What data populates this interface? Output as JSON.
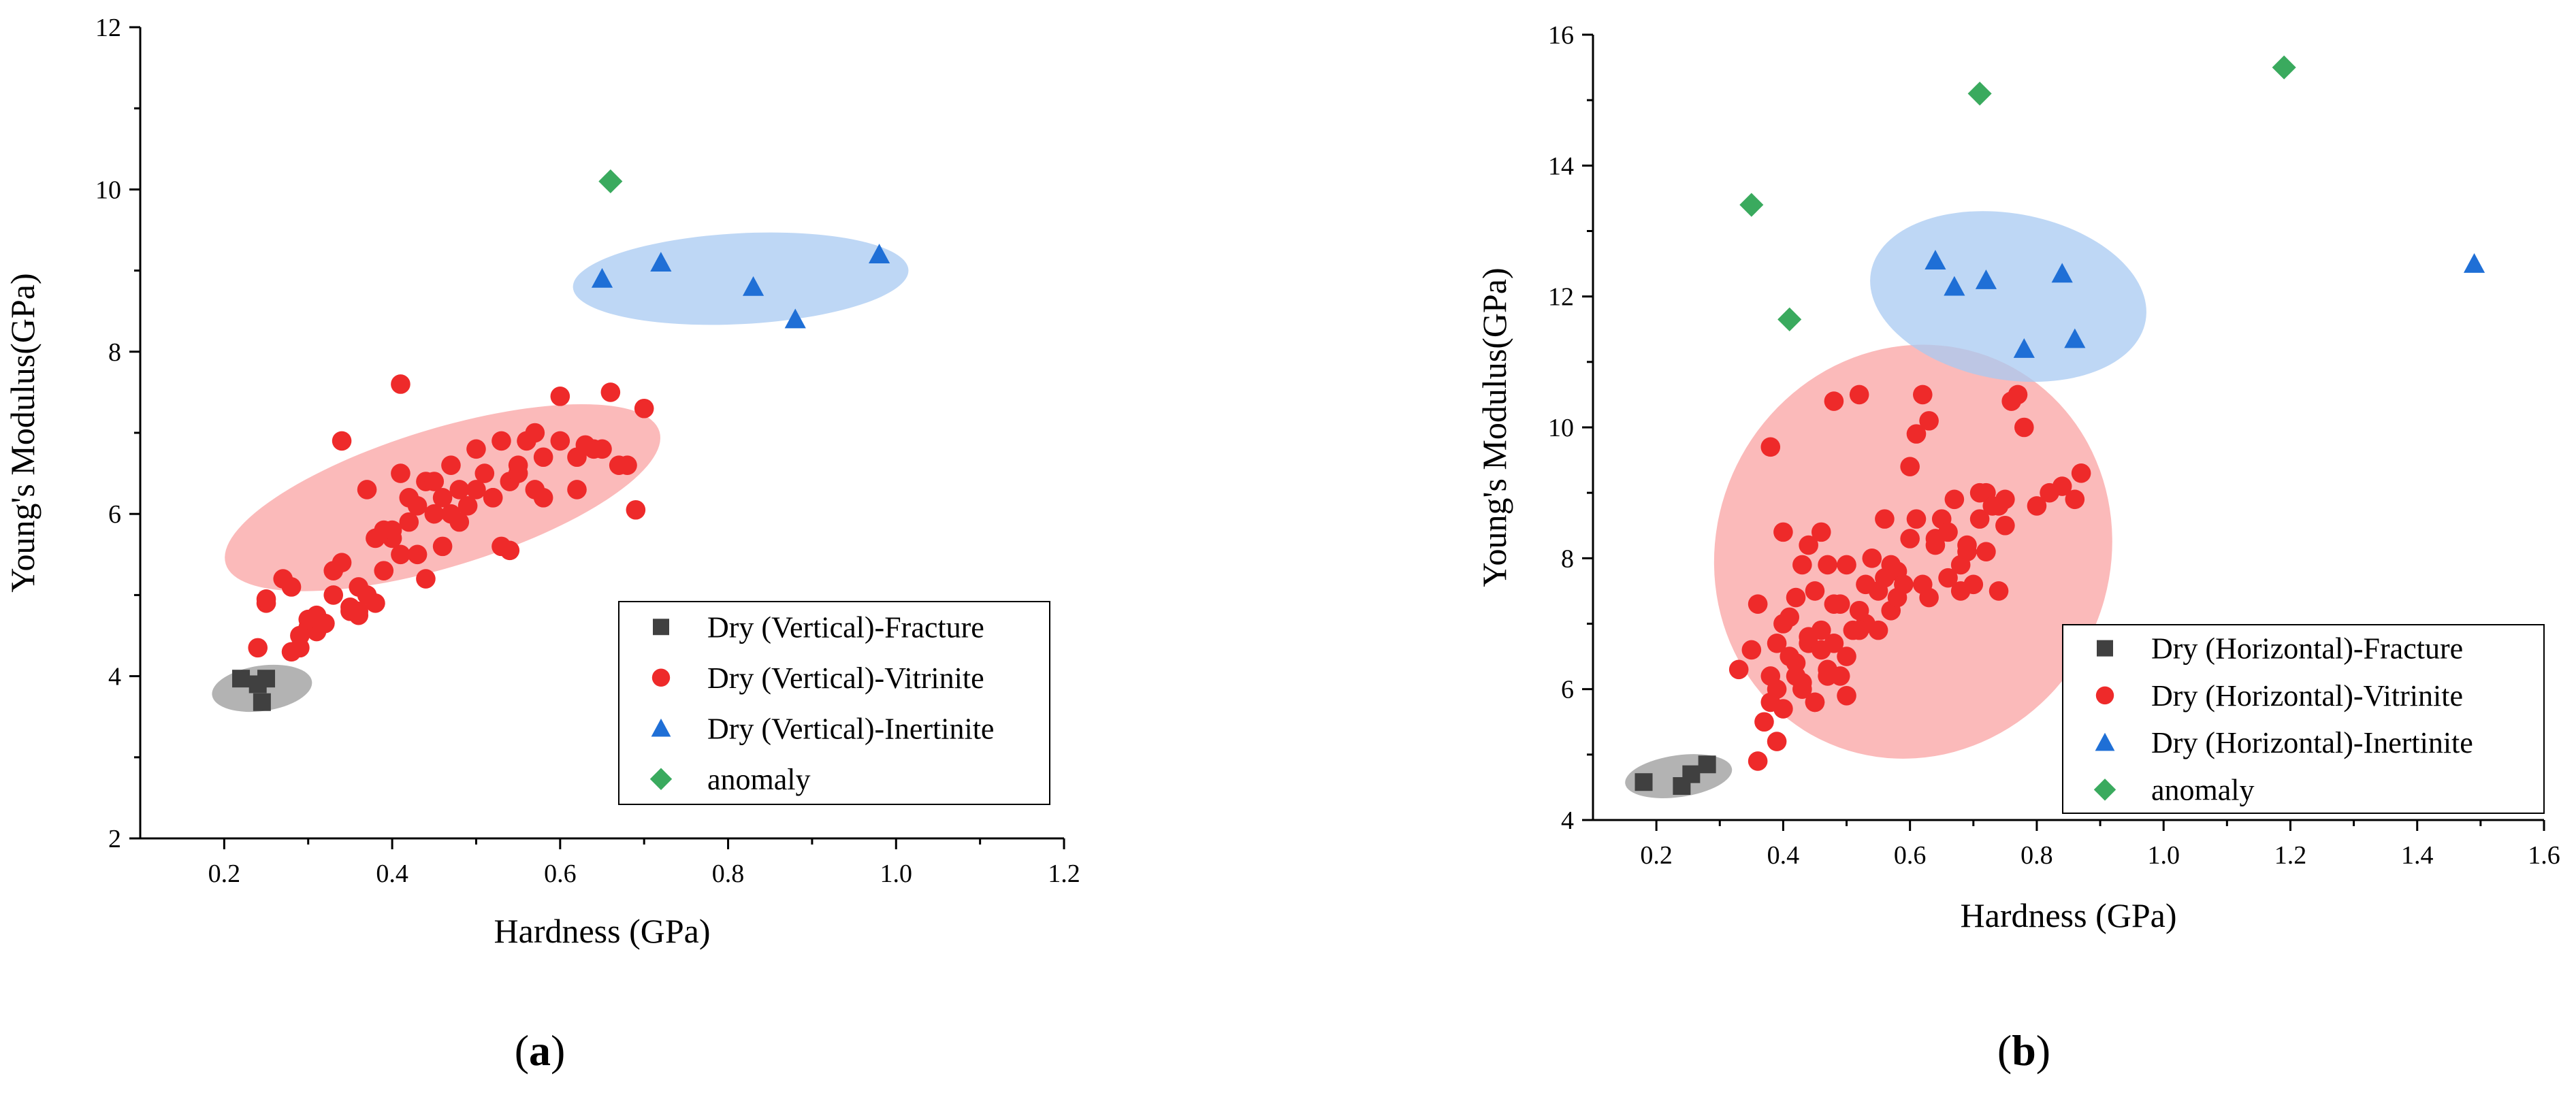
{
  "colors": {
    "fracture": "#404040",
    "vitrinite": "#ee2a2a",
    "inertinite": "#1f6fd6",
    "anomaly": "#3aaa5e",
    "fracture_ellipse": "#9a9a9a",
    "vitrinite_ellipse": "#f9a3a3",
    "inertinite_ellipse": "#a8c9f2"
  },
  "chart_data": [
    {
      "type": "scatter",
      "panel_label": "a",
      "xlabel": "Hardness (GPa)",
      "ylabel": "Young's Modulus(GPa)",
      "xlim": [
        0.1,
        1.2
      ],
      "ylim": [
        2,
        12
      ],
      "xticks": [
        0.2,
        0.4,
        0.6,
        0.8,
        1.0,
        1.2
      ],
      "xtick_labels": [
        "0.2",
        "0.4",
        "0.6",
        "0.8",
        "1.0",
        "1.2"
      ],
      "yticks": [
        2,
        4,
        6,
        8,
        10,
        12
      ],
      "ytick_labels": [
        "2",
        "4",
        "6",
        "8",
        "10",
        "12"
      ],
      "legend_position": "bottom-right",
      "series": [
        {
          "name": "Dry (Vertical)-Fracture",
          "marker": "square",
          "color_key": "fracture",
          "x": [
            0.22,
            0.25,
            0.245,
            0.24
          ],
          "y": [
            3.97,
            3.97,
            3.68,
            3.9
          ]
        },
        {
          "name": "Dry (Vertical)-Vitrinite",
          "marker": "circle",
          "color_key": "vitrinite",
          "x": [
            0.24,
            0.25,
            0.28,
            0.28,
            0.3,
            0.31,
            0.33,
            0.34,
            0.35,
            0.36,
            0.37,
            0.38,
            0.39,
            0.4,
            0.41,
            0.42,
            0.43,
            0.44,
            0.45,
            0.46,
            0.47,
            0.48,
            0.49,
            0.5,
            0.51,
            0.52,
            0.53,
            0.54,
            0.55,
            0.56,
            0.57,
            0.58,
            0.6,
            0.62,
            0.64,
            0.66,
            0.68,
            0.7,
            0.67,
            0.69,
            0.41,
            0.34,
            0.29,
            0.31,
            0.36,
            0.38,
            0.42,
            0.44,
            0.47,
            0.53,
            0.58,
            0.65,
            0.27,
            0.3,
            0.33,
            0.35,
            0.37,
            0.39,
            0.41,
            0.43,
            0.45,
            0.48,
            0.5,
            0.52,
            0.55,
            0.57,
            0.6,
            0.63,
            0.25,
            0.29,
            0.32,
            0.36,
            0.4,
            0.46,
            0.54,
            0.62
          ],
          "y": [
            4.35,
            4.9,
            5.1,
            4.3,
            4.6,
            4.75,
            5.3,
            5.4,
            4.8,
            5.1,
            6.3,
            5.7,
            5.8,
            5.7,
            6.5,
            6.2,
            5.5,
            6.4,
            6.0,
            5.6,
            6.6,
            6.3,
            6.1,
            6.8,
            6.5,
            6.2,
            6.9,
            6.4,
            6.6,
            6.9,
            7.0,
            6.7,
            6.9,
            6.7,
            6.8,
            7.5,
            6.6,
            7.3,
            6.6,
            6.05,
            7.6,
            6.9,
            4.35,
            4.55,
            4.75,
            4.9,
            5.9,
            5.2,
            6.0,
            5.6,
            6.2,
            6.8,
            5.2,
            4.7,
            5.0,
            4.85,
            5.0,
            5.3,
            5.5,
            6.1,
            6.4,
            5.9,
            6.3,
            6.2,
            6.5,
            6.3,
            7.45,
            6.85,
            4.95,
            4.5,
            4.65,
            4.8,
            5.8,
            6.2,
            5.55,
            6.3
          ]
        },
        {
          "name": "Dry (Vertical)-Inertinite",
          "marker": "triangle",
          "color_key": "inertinite",
          "x": [
            0.65,
            0.72,
            0.83,
            0.88,
            0.98
          ],
          "y": [
            8.9,
            9.1,
            8.8,
            8.4,
            9.2
          ]
        },
        {
          "name": "anomaly",
          "marker": "diamond",
          "color_key": "anomaly",
          "x": [
            0.66
          ],
          "y": [
            10.1
          ]
        }
      ],
      "ellipses": [
        {
          "color_key": "fracture_ellipse",
          "cx": 0.245,
          "cy": 3.85,
          "rx": 0.06,
          "ry": 0.28,
          "angle": -8
        },
        {
          "color_key": "vitrinite_ellipse",
          "cx": 0.46,
          "cy": 6.2,
          "rx": 0.27,
          "ry": 0.85,
          "angle": -17
        },
        {
          "color_key": "inertinite_ellipse",
          "cx": 0.815,
          "cy": 8.9,
          "rx": 0.2,
          "ry": 0.56,
          "angle": -3
        }
      ]
    },
    {
      "type": "scatter",
      "panel_label": "b",
      "xlabel": "Hardness (GPa)",
      "ylabel": "Young's Modulus(GPa)",
      "xlim": [
        0.1,
        1.6
      ],
      "ylim": [
        4,
        16
      ],
      "xticks": [
        0.2,
        0.4,
        0.6,
        0.8,
        1.0,
        1.2,
        1.4,
        1.6
      ],
      "xtick_labels": [
        "0.2",
        "0.4",
        "0.6",
        "0.8",
        "1.0",
        "1.2",
        "1.4",
        "1.6"
      ],
      "yticks": [
        4,
        6,
        8,
        10,
        12,
        14,
        16
      ],
      "ytick_labels": [
        "4",
        "6",
        "8",
        "10",
        "12",
        "14",
        "16"
      ],
      "legend_position": "bottom-right",
      "series": [
        {
          "name": "Dry (Horizontal)-Fracture",
          "marker": "square",
          "color_key": "fracture",
          "x": [
            0.18,
            0.24,
            0.255,
            0.28
          ],
          "y": [
            4.58,
            4.52,
            4.7,
            4.85
          ]
        },
        {
          "name": "Dry (Horizontal)-Vitrinite",
          "marker": "circle",
          "color_key": "vitrinite",
          "x": [
            0.33,
            0.35,
            0.36,
            0.37,
            0.38,
            0.38,
            0.39,
            0.39,
            0.4,
            0.4,
            0.41,
            0.41,
            0.42,
            0.42,
            0.43,
            0.43,
            0.44,
            0.44,
            0.45,
            0.45,
            0.46,
            0.46,
            0.47,
            0.47,
            0.48,
            0.48,
            0.49,
            0.49,
            0.5,
            0.5,
            0.51,
            0.52,
            0.53,
            0.54,
            0.55,
            0.56,
            0.57,
            0.58,
            0.59,
            0.6,
            0.61,
            0.62,
            0.63,
            0.64,
            0.65,
            0.66,
            0.67,
            0.68,
            0.69,
            0.7,
            0.71,
            0.72,
            0.73,
            0.74,
            0.75,
            0.76,
            0.77,
            0.78,
            0.8,
            0.82,
            0.84,
            0.86,
            0.87,
            0.62,
            0.61,
            0.64,
            0.38,
            0.44,
            0.5,
            0.52,
            0.72,
            0.75,
            0.36,
            0.4,
            0.42,
            0.46,
            0.48,
            0.55,
            0.58,
            0.66,
            0.69,
            0.74,
            0.52,
            0.45,
            0.39,
            0.43,
            0.47,
            0.53,
            0.57,
            0.63,
            0.68,
            0.71,
            0.6,
            0.56
          ],
          "y": [
            6.3,
            6.6,
            4.9,
            5.5,
            5.8,
            6.2,
            6.0,
            6.7,
            5.7,
            8.4,
            6.5,
            7.1,
            7.4,
            6.2,
            6.0,
            7.9,
            6.7,
            8.2,
            5.8,
            7.5,
            6.6,
            8.4,
            6.3,
            7.9,
            6.7,
            10.4,
            6.2,
            7.3,
            5.9,
            6.5,
            6.9,
            10.5,
            7.0,
            8.0,
            7.5,
            8.6,
            7.2,
            7.8,
            7.6,
            9.4,
            9.9,
            10.5,
            10.1,
            8.3,
            8.6,
            8.4,
            8.9,
            7.5,
            8.2,
            7.6,
            8.6,
            9.0,
            8.8,
            7.5,
            8.5,
            10.4,
            10.5,
            10.0,
            8.8,
            9.0,
            9.1,
            8.9,
            9.3,
            7.6,
            8.6,
            8.2,
            9.7,
            6.8,
            7.9,
            6.9,
            8.1,
            8.9,
            7.3,
            7.0,
            6.4,
            6.9,
            7.3,
            6.9,
            7.4,
            7.7,
            8.1,
            8.8,
            7.2,
            5.8,
            5.2,
            6.1,
            6.2,
            7.6,
            7.9,
            7.4,
            7.9,
            9.0,
            8.3,
            7.7
          ]
        },
        {
          "name": "Dry (Horizontal)-Inertinite",
          "marker": "triangle",
          "color_key": "inertinite",
          "x": [
            0.64,
            0.67,
            0.72,
            0.78,
            0.84,
            0.86,
            1.49
          ],
          "y": [
            12.55,
            12.15,
            12.25,
            11.2,
            12.35,
            11.35,
            12.5
          ]
        },
        {
          "name": "anomaly",
          "marker": "diamond",
          "color_key": "anomaly",
          "x": [
            0.35,
            0.41,
            0.71,
            1.19
          ],
          "y": [
            13.4,
            11.65,
            15.1,
            15.5
          ]
        }
      ],
      "ellipses": [
        {
          "color_key": "fracture_ellipse",
          "cx": 0.235,
          "cy": 4.67,
          "rx": 0.085,
          "ry": 0.32,
          "angle": -8
        },
        {
          "color_key": "vitrinite_ellipse",
          "cx": 0.605,
          "cy": 8.1,
          "rx": 0.31,
          "ry": 3.2,
          "angle": 26
        },
        {
          "color_key": "inertinite_ellipse",
          "cx": 0.755,
          "cy": 12.0,
          "rx": 0.22,
          "ry": 1.27,
          "angle": 10
        }
      ]
    }
  ]
}
